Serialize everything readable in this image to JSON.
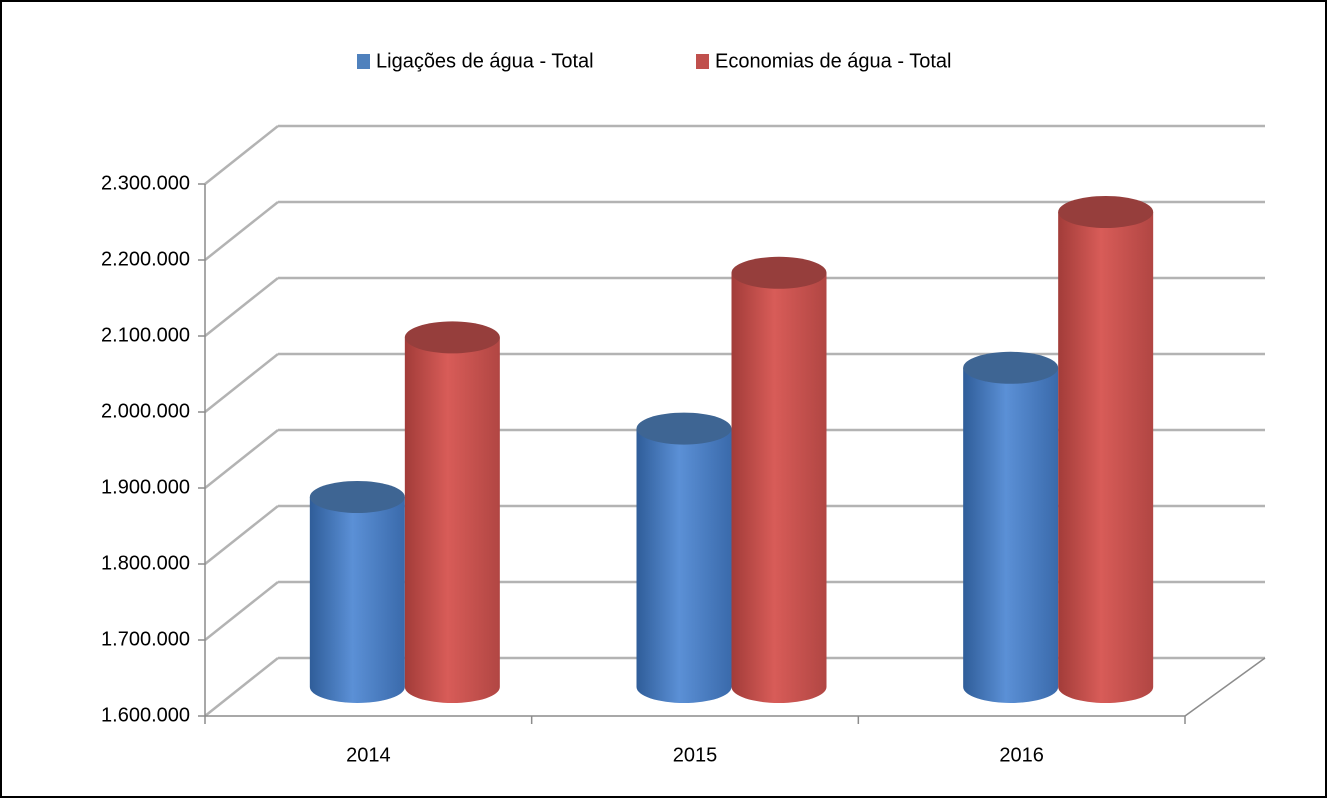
{
  "chart_data": {
    "type": "bar3d",
    "categories": [
      "2014",
      "2015",
      "2016"
    ],
    "series": [
      {
        "name": "Ligações de água - Total",
        "color": "#4f81bd",
        "values": [
          1850000,
          1940000,
          2020000
        ]
      },
      {
        "name": "Economias de água - Total",
        "color": "#c0504d",
        "values": [
          2060000,
          2145000,
          2225000
        ]
      }
    ],
    "ylim": [
      1600000,
      2300000
    ],
    "yticks": [
      {
        "value": 1600000,
        "label": "1.600.000"
      },
      {
        "value": 1700000,
        "label": "1.700.000"
      },
      {
        "value": 1800000,
        "label": "1.800.000"
      },
      {
        "value": 1900000,
        "label": "1.900.000"
      },
      {
        "value": 2000000,
        "label": "2.000.000"
      },
      {
        "value": 2100000,
        "label": "2.100.000"
      },
      {
        "value": 2200000,
        "label": "2.200.000"
      },
      {
        "value": 2300000,
        "label": "2.300.000"
      }
    ],
    "grid": true,
    "legend": "top"
  }
}
